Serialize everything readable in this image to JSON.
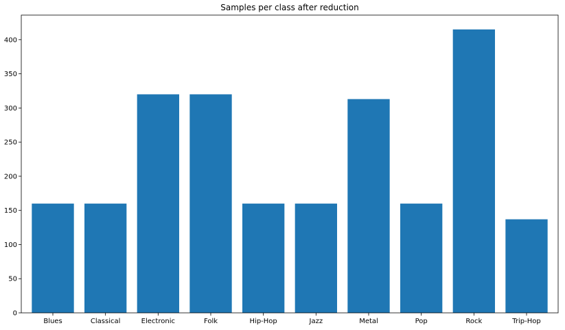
{
  "chart_data": {
    "type": "bar",
    "title": "Samples per class after reduction",
    "xlabel": "",
    "ylabel": "",
    "categories": [
      "Blues",
      "Classical",
      "Electronic",
      "Folk",
      "Hip-Hop",
      "Jazz",
      "Metal",
      "Pop",
      "Rock",
      "Trip-Hop"
    ],
    "values": [
      160,
      160,
      320,
      320,
      160,
      160,
      313,
      160,
      415,
      137
    ],
    "ylim": [
      0,
      436
    ],
    "yticks": [
      0,
      50,
      100,
      150,
      200,
      250,
      300,
      350,
      400
    ],
    "grid": false,
    "bar_color": "#1f77b4"
  }
}
